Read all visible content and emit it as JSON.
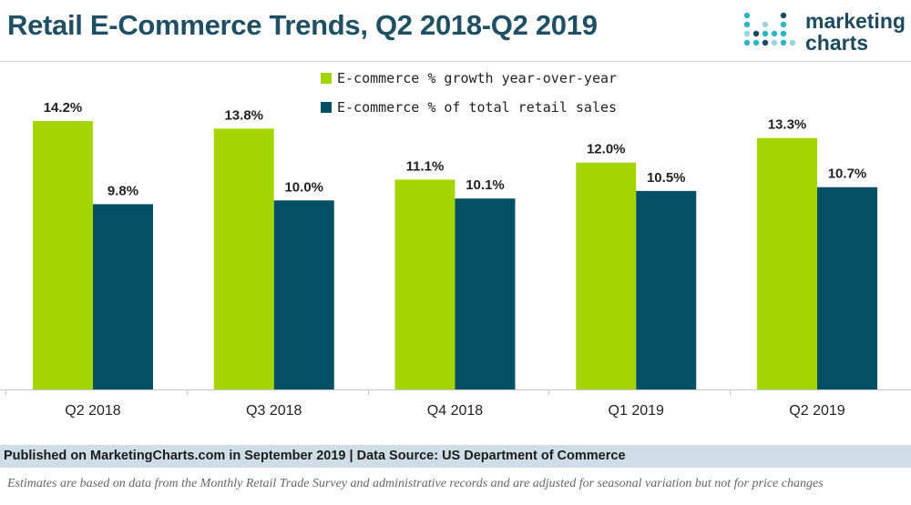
{
  "header": {
    "title": "Retail E-Commerce Trends, Q2 2018-Q2 2019"
  },
  "logo": {
    "line1": "marketing",
    "line2": "charts",
    "colors": [
      "#2bb6c4",
      "#1d4a5c",
      "#9dd3dd"
    ]
  },
  "footer": {
    "published": "Published on MarketingCharts.com in September 2019 | Data Source: US Department of Commerce",
    "note": "Estimates are based on data from the Monthly Retail Trade Survey and administrative records and are adjusted for seasonal variation but not for price changes"
  },
  "chart_data": {
    "type": "bar",
    "title": "Retail E-Commerce Trends, Q2 2018-Q2 2019",
    "categories": [
      "Q2 2018",
      "Q3 2018",
      "Q4 2018",
      "Q1 2019",
      "Q2 2019"
    ],
    "series": [
      {
        "name": "E-commerce % growth year-over-year",
        "color": "#a5d500",
        "values": [
          14.2,
          13.8,
          11.1,
          12.0,
          13.3
        ],
        "labels": [
          "14.2%",
          "13.8%",
          "11.1%",
          "12.0%",
          "13.3%"
        ]
      },
      {
        "name": "E-commerce % of total retail sales",
        "color": "#034f64",
        "values": [
          9.8,
          10.0,
          10.1,
          10.5,
          10.7
        ],
        "labels": [
          "9.8%",
          "10.0%",
          "10.1%",
          "10.5%",
          "10.7%"
        ]
      }
    ],
    "ylim": [
      0,
      14.2
    ],
    "grid": false,
    "legend": "top-center"
  }
}
